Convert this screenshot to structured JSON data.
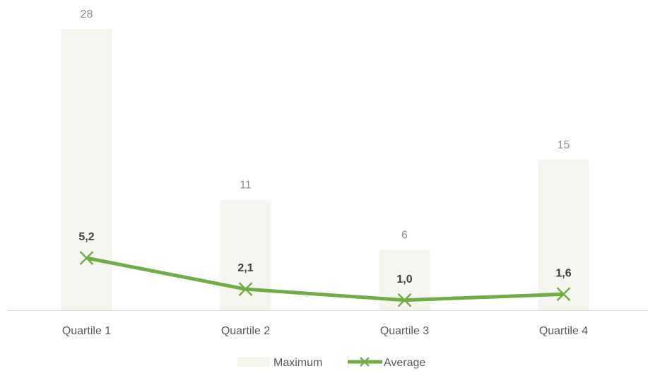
{
  "chart_data": {
    "type": "bar",
    "categories": [
      "Quartile 1",
      "Quartile 2",
      "Quartile 3",
      "Quartile 4"
    ],
    "series": [
      {
        "name": "Maximum",
        "kind": "bar",
        "values": [
          28,
          11,
          6,
          15
        ],
        "labels": [
          "28",
          "11",
          "6",
          "15"
        ],
        "color": "#f4f6ef"
      },
      {
        "name": "Average",
        "kind": "line",
        "values": [
          5.2,
          2.1,
          1.0,
          1.6
        ],
        "labels": [
          "5,2",
          "2,1",
          "1,0",
          "1,6"
        ],
        "color": "#70ad47",
        "marker": "x"
      }
    ],
    "title": "",
    "xlabel": "",
    "ylabel": "",
    "ylim": [
      0,
      28
    ],
    "grid": false,
    "legend": "bottom-center",
    "axis_color": "#d9d9d9"
  }
}
